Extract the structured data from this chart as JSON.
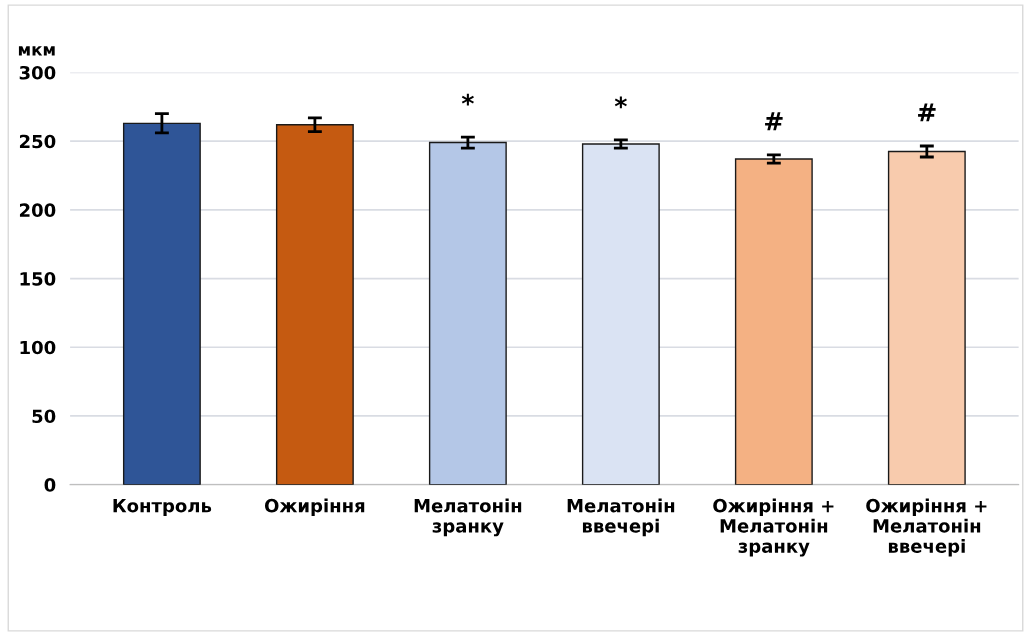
{
  "chart_data": {
    "type": "bar",
    "ylabel": "мкм",
    "categories": [
      "Контроль",
      "Ожиріння",
      "Мелатонін\nзранку",
      "Мелатонін\nввечері",
      "Ожиріння +\nМелатонін\nзранку",
      "Ожиріння +\nМелатонін\nввечері"
    ],
    "values": [
      263,
      262,
      249,
      248,
      237,
      242.5
    ],
    "errors": [
      7,
      5,
      4,
      3,
      3,
      4
    ],
    "colors": [
      "#2f5597",
      "#c55a11",
      "#b4c7e7",
      "#dae3f3",
      "#f4b183",
      "#f8cbad"
    ],
    "ylim": [
      0,
      300
    ],
    "yticks": [
      0,
      50,
      100,
      150,
      200,
      250,
      300
    ],
    "grid": "y",
    "value_labels": [
      null,
      null,
      "*",
      "*",
      "#",
      "#"
    ]
  }
}
